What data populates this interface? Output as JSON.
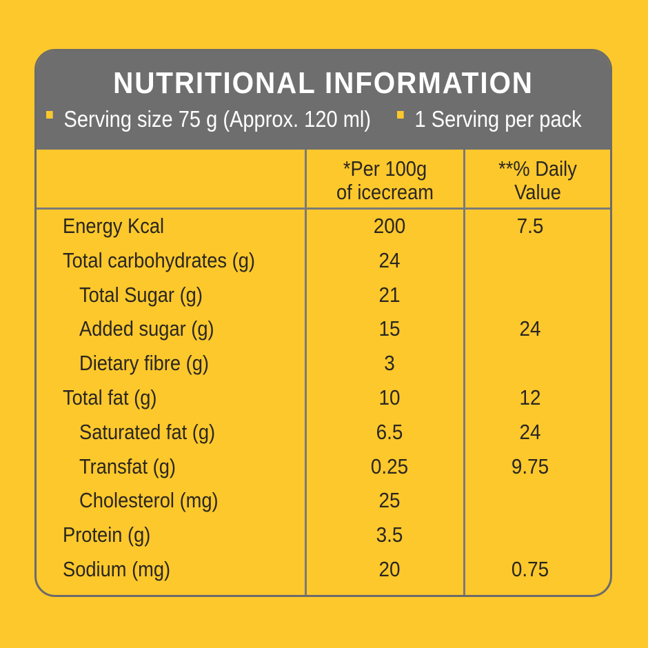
{
  "title": "NUTRITIONAL INFORMATION",
  "serving": {
    "size": "Serving size 75 g (Approx. 120 ml)",
    "per_pack": "1 Serving per pack"
  },
  "columns": {
    "per100_line1": "*Per 100g",
    "per100_line2": "of icecream",
    "dv_line1": "**% Daily",
    "dv_line2": "Value"
  },
  "rows": [
    {
      "name": "Energy Kcal",
      "per100": "200",
      "dv": "7.5",
      "indent": false
    },
    {
      "name": "Total carbohydrates (g)",
      "per100": "24",
      "dv": "",
      "indent": false
    },
    {
      "name": "Total Sugar (g)",
      "per100": "21",
      "dv": "",
      "indent": true
    },
    {
      "name": "Added sugar (g)",
      "per100": "15",
      "dv": "24",
      "indent": true
    },
    {
      "name": "Dietary fibre (g)",
      "per100": "3",
      "dv": "",
      "indent": true
    },
    {
      "name": "Total fat (g)",
      "per100": "10",
      "dv": "12",
      "indent": false
    },
    {
      "name": "Saturated fat (g)",
      "per100": "6.5",
      "dv": "24",
      "indent": true
    },
    {
      "name": "Transfat (g)",
      "per100": "0.25",
      "dv": "9.75",
      "indent": true
    },
    {
      "name": "Cholesterol (mg)",
      "per100": "25",
      "dv": "",
      "indent": true
    },
    {
      "name": "Protein (g)",
      "per100": "3.5",
      "dv": "",
      "indent": false
    },
    {
      "name": "Sodium (mg)",
      "per100": "20",
      "dv": "0.75",
      "indent": false
    }
  ],
  "colors": {
    "background": "#fcc82c",
    "header": "#6e6e6f",
    "text": "#2a2620"
  }
}
